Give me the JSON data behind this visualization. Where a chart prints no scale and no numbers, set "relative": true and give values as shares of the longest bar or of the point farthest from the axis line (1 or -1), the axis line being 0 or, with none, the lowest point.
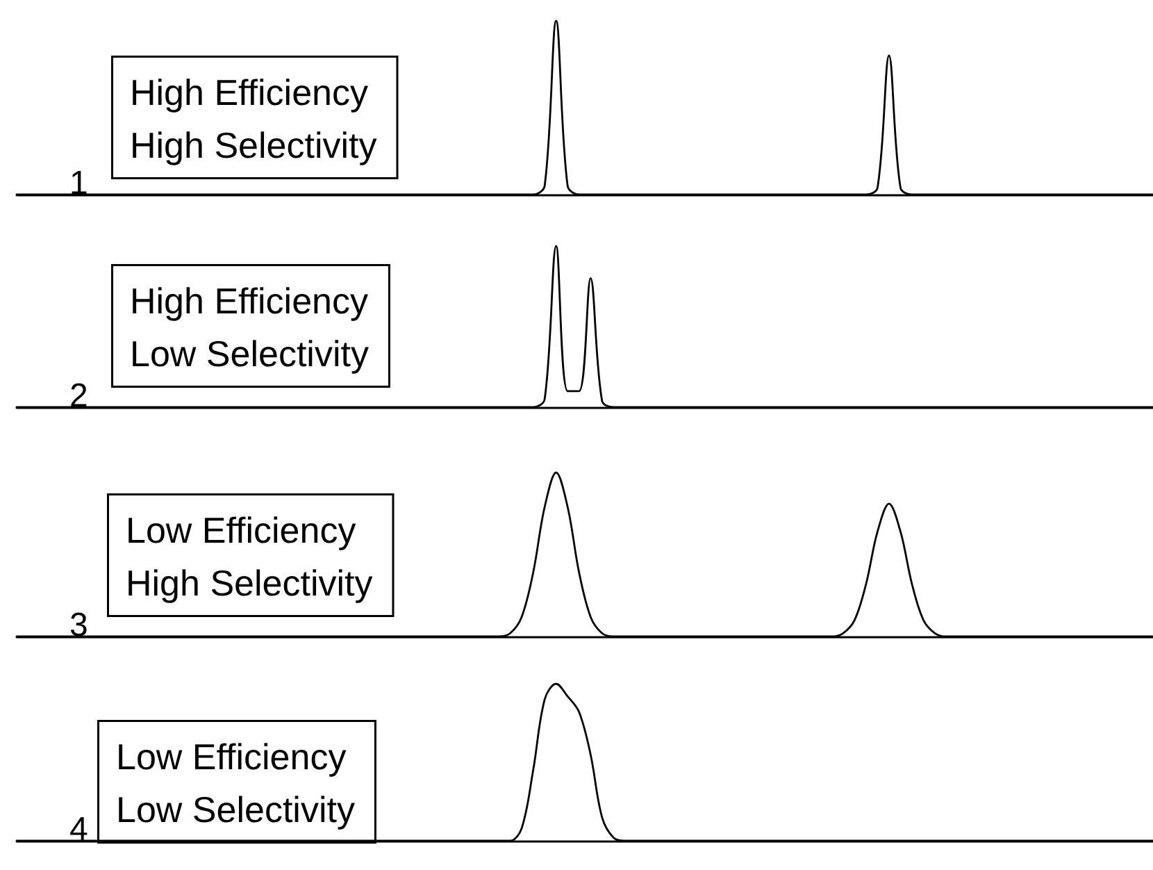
{
  "chart_data": [
    {
      "type": "line",
      "relative": true,
      "color": "#000000",
      "annotations": [
        "1",
        "High Efficiency\nHigh Selectivity"
      ],
      "categories": [
        null,
        null,
        null,
        null,
        null,
        null,
        null,
        null,
        null,
        null,
        null,
        null,
        null,
        null,
        null,
        null,
        null,
        null,
        null,
        null,
        null,
        null,
        null,
        null,
        null,
        null,
        null,
        null,
        null,
        null,
        null,
        null,
        null,
        null,
        null,
        null,
        null,
        null,
        null,
        null,
        null,
        null,
        null,
        null,
        null,
        null,
        null,
        null,
        null,
        null,
        null,
        null,
        null,
        null,
        null,
        null,
        null,
        null,
        null,
        null,
        null,
        null,
        null,
        null,
        null,
        null,
        null,
        null,
        null,
        null,
        null,
        null,
        null,
        null,
        null,
        null,
        null,
        null,
        null,
        null,
        null,
        null,
        null,
        null,
        null,
        null,
        null,
        null,
        null,
        null,
        null,
        null,
        null,
        null,
        null,
        null,
        null,
        null,
        null,
        null
      ],
      "values": [
        0,
        0,
        0,
        0,
        0,
        0,
        0,
        0,
        0,
        0,
        0,
        0,
        0,
        0,
        0,
        0,
        0,
        0,
        0,
        0,
        0,
        0,
        0,
        0,
        0,
        0,
        0,
        0,
        0,
        0,
        0,
        0,
        0,
        0,
        0,
        0,
        0,
        0,
        0,
        0,
        0,
        0,
        0,
        0,
        0,
        0,
        0.05,
        1,
        0.05,
        0,
        0,
        0,
        0,
        0,
        0,
        0,
        0,
        0,
        0,
        0,
        0,
        0,
        0,
        0,
        0,
        0,
        0,
        0,
        0,
        0,
        0,
        0,
        0,
        0,
        0,
        0.04,
        0.8,
        0.04,
        0,
        0,
        0,
        0,
        0,
        0,
        0,
        0,
        0,
        0,
        0,
        0,
        0,
        0,
        0,
        0,
        0,
        0,
        0,
        0,
        0,
        0
      ]
    },
    {
      "type": "line",
      "relative": true,
      "color": "#000000",
      "annotations": [
        "2",
        "High Efficiency\nLow Selectivity"
      ],
      "categories": [
        null,
        null,
        null,
        null,
        null,
        null,
        null,
        null,
        null,
        null,
        null,
        null,
        null,
        null,
        null,
        null,
        null,
        null,
        null,
        null,
        null,
        null,
        null,
        null,
        null,
        null,
        null,
        null,
        null,
        null,
        null,
        null,
        null,
        null,
        null,
        null,
        null,
        null,
        null,
        null,
        null,
        null,
        null,
        null,
        null,
        null,
        null,
        null,
        null,
        null,
        null,
        null,
        null,
        null,
        null,
        null,
        null,
        null,
        null,
        null,
        null,
        null,
        null,
        null,
        null,
        null,
        null,
        null,
        null,
        null,
        null,
        null,
        null,
        null,
        null,
        null,
        null,
        null,
        null,
        null,
        null,
        null,
        null,
        null,
        null,
        null,
        null,
        null,
        null,
        null,
        null,
        null,
        null,
        null,
        null,
        null,
        null,
        null,
        null,
        null
      ],
      "values": [
        0,
        0,
        0,
        0,
        0,
        0,
        0,
        0,
        0,
        0,
        0,
        0,
        0,
        0,
        0,
        0,
        0,
        0,
        0,
        0,
        0,
        0,
        0,
        0,
        0,
        0,
        0,
        0,
        0,
        0,
        0,
        0,
        0,
        0,
        0,
        0,
        0,
        0,
        0,
        0,
        0,
        0,
        0,
        0,
        0,
        0,
        0.05,
        1,
        0.1,
        0.1,
        0.8,
        0.04,
        0,
        0,
        0,
        0,
        0,
        0,
        0,
        0,
        0,
        0,
        0,
        0,
        0,
        0,
        0,
        0,
        0,
        0,
        0,
        0,
        0,
        0,
        0,
        0,
        0,
        0,
        0,
        0,
        0,
        0,
        0,
        0,
        0,
        0,
        0,
        0,
        0,
        0,
        0,
        0,
        0,
        0,
        0,
        0,
        0,
        0,
        0,
        0
      ]
    },
    {
      "type": "line",
      "relative": true,
      "color": "#000000",
      "annotations": [
        "3",
        "Low Efficiency\nHigh Selectivity"
      ],
      "categories": [
        null,
        null,
        null,
        null,
        null,
        null,
        null,
        null,
        null,
        null,
        null,
        null,
        null,
        null,
        null,
        null,
        null,
        null,
        null,
        null,
        null,
        null,
        null,
        null,
        null,
        null,
        null,
        null,
        null,
        null,
        null,
        null,
        null,
        null,
        null,
        null,
        null,
        null,
        null,
        null,
        null,
        null,
        null,
        null,
        null,
        null,
        null,
        null,
        null,
        null,
        null,
        null,
        null,
        null,
        null,
        null,
        null,
        null,
        null,
        null,
        null,
        null,
        null,
        null,
        null,
        null,
        null,
        null,
        null,
        null,
        null,
        null,
        null,
        null,
        null,
        null,
        null,
        null,
        null,
        null,
        null,
        null,
        null,
        null,
        null,
        null,
        null,
        null,
        null,
        null,
        null,
        null,
        null,
        null,
        null,
        null,
        null,
        null,
        null,
        null
      ],
      "values": [
        0,
        0,
        0,
        0,
        0,
        0,
        0,
        0,
        0,
        0,
        0,
        0,
        0,
        0,
        0,
        0,
        0,
        0,
        0,
        0,
        0,
        0,
        0,
        0,
        0,
        0,
        0,
        0,
        0,
        0,
        0,
        0,
        0,
        0,
        0,
        0,
        0,
        0,
        0,
        0,
        0,
        0,
        0,
        0.02,
        0.12,
        0.39,
        0.79,
        1,
        0.79,
        0.39,
        0.12,
        0.02,
        0,
        0,
        0,
        0,
        0,
        0,
        0,
        0,
        0,
        0,
        0,
        0,
        0,
        0,
        0,
        0,
        0,
        0,
        0,
        0,
        0.02,
        0.1,
        0.32,
        0.64,
        0.81,
        0.64,
        0.32,
        0.1,
        0.02,
        0,
        0,
        0,
        0,
        0,
        0,
        0,
        0,
        0,
        0,
        0,
        0,
        0,
        0,
        0,
        0,
        0,
        0,
        0
      ]
    },
    {
      "type": "line",
      "relative": true,
      "color": "#000000",
      "annotations": [
        "4",
        "Low Efficiency\nLow Selectivity"
      ],
      "categories": [
        null,
        null,
        null,
        null,
        null,
        null,
        null,
        null,
        null,
        null,
        null,
        null,
        null,
        null,
        null,
        null,
        null,
        null,
        null,
        null,
        null,
        null,
        null,
        null,
        null,
        null,
        null,
        null,
        null,
        null,
        null,
        null,
        null,
        null,
        null,
        null,
        null,
        null,
        null,
        null,
        null,
        null,
        null,
        null,
        null,
        null,
        null,
        null,
        null,
        null,
        null,
        null,
        null,
        null,
        null,
        null,
        null,
        null,
        null,
        null,
        null,
        null,
        null,
        null,
        null,
        null,
        null,
        null,
        null,
        null,
        null,
        null,
        null,
        null,
        null,
        null,
        null,
        null,
        null,
        null,
        null,
        null,
        null,
        null,
        null,
        null,
        null,
        null,
        null,
        null,
        null,
        null,
        null,
        null,
        null,
        null,
        null,
        null,
        null,
        null
      ],
      "values": [
        0,
        0,
        0,
        0,
        0,
        0,
        0,
        0,
        0,
        0,
        0,
        0,
        0,
        0,
        0,
        0,
        0,
        0,
        0,
        0,
        0,
        0,
        0,
        0,
        0,
        0,
        0,
        0,
        0,
        0,
        0,
        0,
        0,
        0,
        0,
        0,
        0,
        0,
        0,
        0,
        0,
        0,
        0,
        0,
        0.08,
        0.45,
        0.9,
        1,
        0.92,
        0.82,
        0.55,
        0.15,
        0.02,
        0,
        0,
        0,
        0,
        0,
        0,
        0,
        0,
        0,
        0,
        0,
        0,
        0,
        0,
        0,
        0,
        0,
        0,
        0,
        0,
        0,
        0,
        0,
        0,
        0,
        0,
        0,
        0,
        0,
        0,
        0,
        0,
        0,
        0,
        0,
        0,
        0,
        0,
        0,
        0,
        0,
        0,
        0,
        0,
        0,
        0,
        0
      ]
    }
  ]
}
